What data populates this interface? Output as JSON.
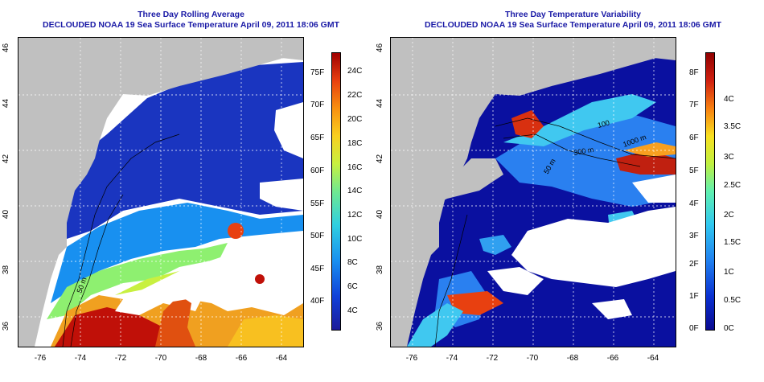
{
  "left_panel": {
    "title_line1": "Three Day Rolling Average",
    "title_line2": "DECLOUDED NOAA 19 Sea Surface Temperature April 09, 2011 18:06 GMT",
    "x_ticks": [
      "-76",
      "-74",
      "-72",
      "-70",
      "-68",
      "-66",
      "-64"
    ],
    "y_ticks": [
      "36",
      "38",
      "40",
      "42",
      "44",
      "46"
    ],
    "colorbar_f": [
      "75F",
      "70F",
      "65F",
      "60F",
      "55F",
      "50F",
      "45F",
      "40F"
    ],
    "colorbar_c": [
      "24C",
      "22C",
      "20C",
      "18C",
      "16C",
      "14C",
      "12C",
      "10C",
      "8C",
      "6C",
      "4C"
    ],
    "contour_labels": [
      "50 m"
    ]
  },
  "right_panel": {
    "title_line1": "Three Day Temperature Variability",
    "title_line2": "DECLOUDED NOAA 19 Sea Surface Temperature April 09, 2011 18:06 GMT",
    "x_ticks": [
      "-76",
      "-74",
      "-72",
      "-70",
      "-68",
      "-66",
      "-64"
    ],
    "y_ticks": [
      "36",
      "38",
      "40",
      "42",
      "44",
      "46"
    ],
    "colorbar_f": [
      "8F",
      "7F",
      "6F",
      "5F",
      "4F",
      "3F",
      "2F",
      "1F",
      "0F"
    ],
    "colorbar_c": [
      "4C",
      "3.5C",
      "3C",
      "2.5C",
      "2C",
      "1.5C",
      "1C",
      "0.5C",
      "0C"
    ],
    "contour_labels": [
      "100",
      "300 m",
      "1000 m",
      "50 m"
    ]
  },
  "colors": {
    "land": "#c0c0c0",
    "cloud_mask": "#ffffff",
    "title_color": "#1a1aa6",
    "sst_scale": [
      "#1b1b9a",
      "#1040d8",
      "#1890f0",
      "#30d0e0",
      "#70e890",
      "#c8f040",
      "#f8d020",
      "#f89010",
      "#e84010",
      "#a00000"
    ],
    "var_scale": [
      "#0a0a90",
      "#0a30d0",
      "#2080f0",
      "#30c8f0",
      "#60f0b0",
      "#c0f040",
      "#f8e020",
      "#f88010",
      "#d02010",
      "#900000"
    ]
  }
}
